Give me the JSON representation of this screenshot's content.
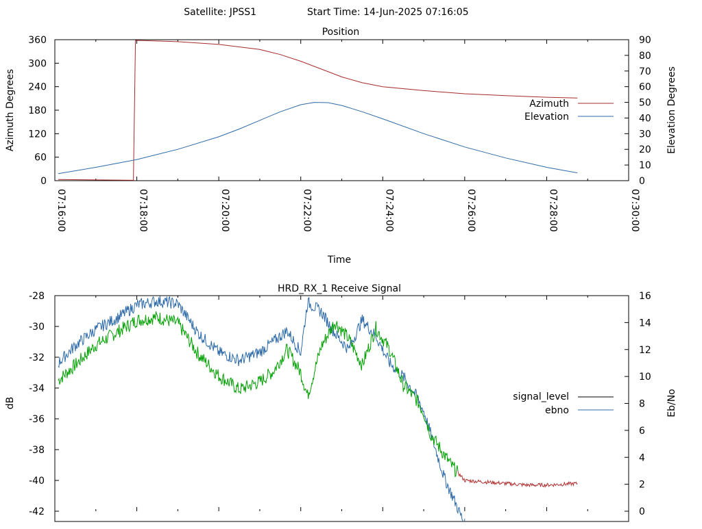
{
  "header": {
    "satellite": "Satellite: JPSS1",
    "start_time": "Start Time: 14-Jun-2025 07:16:05"
  },
  "colors": {
    "azimuth": "#a52a2a",
    "elevation": "#2d6aa8",
    "signal_level_legend": "#000000",
    "ebno_legend": "#2d6aa8",
    "signal_trace_green": "#00a000",
    "signal_trace_red": "#b03030"
  },
  "chart_data": [
    {
      "type": "line",
      "title": "Position",
      "xlabel": "Time",
      "ylabel": "Azimuth Degrees",
      "y2label": "Elevation Degrees",
      "xlim": [
        "07:16:00",
        "07:30:00"
      ],
      "x_ticks": [
        "07:16:00",
        "07:18:00",
        "07:20:00",
        "07:22:00",
        "07:24:00",
        "07:26:00",
        "07:28:00",
        "07:30:00"
      ],
      "ylim": [
        0,
        360
      ],
      "y_ticks": [
        "0",
        "60",
        "120",
        "180",
        "240",
        "300",
        "360"
      ],
      "y2lim": [
        0,
        90
      ],
      "y2_ticks": [
        "0",
        "10",
        "20",
        "30",
        "40",
        "50",
        "60",
        "70",
        "80",
        "90"
      ],
      "legend_position": "right",
      "series": [
        {
          "name": "Azimuth",
          "axis": "y",
          "x": [
            "07:16:05",
            "07:17:00",
            "07:17:55",
            "07:17:58",
            "07:18:05",
            "07:19:00",
            "07:20:00",
            "07:21:00",
            "07:21:30",
            "07:22:00",
            "07:22:30",
            "07:23:00",
            "07:23:30",
            "07:24:00",
            "07:25:00",
            "07:26:00",
            "07:27:00",
            "07:28:00",
            "07:28:45"
          ],
          "values": [
            3,
            2,
            1,
            358,
            358,
            355,
            348,
            335,
            322,
            305,
            285,
            265,
            250,
            240,
            230,
            222,
            217,
            213,
            211
          ]
        },
        {
          "name": "Elevation",
          "axis": "y2",
          "x": [
            "07:16:05",
            "07:17:00",
            "07:18:00",
            "07:19:00",
            "07:20:00",
            "07:20:30",
            "07:21:00",
            "07:21:30",
            "07:22:00",
            "07:22:20",
            "07:22:40",
            "07:23:00",
            "07:23:30",
            "07:24:00",
            "07:25:00",
            "07:26:00",
            "07:27:00",
            "07:28:00",
            "07:28:45"
          ],
          "values": [
            4.5,
            8.5,
            13.5,
            20,
            28,
            33,
            38.5,
            44,
            48.5,
            50,
            49.8,
            48,
            44,
            39.5,
            30,
            21.5,
            14.5,
            8.5,
            5
          ]
        }
      ]
    },
    {
      "type": "line",
      "title": "HRD_RX_1 Receive Signal",
      "ylabel": "dB",
      "y2label": "Eb/No",
      "xlim": [
        "07:16:00",
        "07:30:00"
      ],
      "ylim": [
        -42,
        -28
      ],
      "y_ticks": [
        "-28",
        "-30",
        "-32",
        "-34",
        "-36",
        "-38",
        "-40",
        "-42"
      ],
      "y2lim": [
        0,
        16
      ],
      "y2_ticks": [
        "0",
        "2",
        "4",
        "6",
        "8",
        "10",
        "12",
        "14",
        "16"
      ],
      "legend_position": "right",
      "series": [
        {
          "name": "signal_level",
          "axis": "y",
          "x": [
            "07:16:05",
            "07:16:30",
            "07:17:00",
            "07:17:30",
            "07:18:00",
            "07:18:30",
            "07:19:00",
            "07:19:30",
            "07:20:00",
            "07:20:30",
            "07:21:00",
            "07:21:20",
            "07:21:40",
            "07:22:00",
            "07:22:10",
            "07:22:30",
            "07:22:50",
            "07:23:10",
            "07:23:30",
            "07:23:50",
            "07:24:10",
            "07:24:30",
            "07:24:50",
            "07:25:00",
            "07:25:10",
            "07:25:40",
            "07:26:00",
            "07:26:30",
            "07:27:00",
            "07:27:30",
            "07:28:00",
            "07:28:45"
          ],
          "values": [
            -33.5,
            -32.5,
            -31.2,
            -30.4,
            -29.6,
            -29.4,
            -29.8,
            -31.8,
            -33.2,
            -34.1,
            -33.6,
            -32.9,
            -31.5,
            -33.0,
            -34.5,
            -31.3,
            -29.7,
            -30.8,
            -32.5,
            -30.1,
            -31.5,
            -33.8,
            -34.8,
            -35.6,
            -37.0,
            -39.0,
            -40.0,
            -40.1,
            -40.2,
            -40.3,
            -40.3,
            -40.2
          ]
        },
        {
          "name": "ebno",
          "axis": "y2",
          "x": [
            "07:16:05",
            "07:16:30",
            "07:17:00",
            "07:17:30",
            "07:18:00",
            "07:18:30",
            "07:19:00",
            "07:19:30",
            "07:20:00",
            "07:20:30",
            "07:21:00",
            "07:21:20",
            "07:21:40",
            "07:22:00",
            "07:22:10",
            "07:22:30",
            "07:22:50",
            "07:23:10",
            "07:23:30",
            "07:23:50",
            "07:24:10",
            "07:24:30",
            "07:24:50",
            "07:25:00",
            "07:25:10",
            "07:25:30",
            "07:25:50",
            "07:26:00"
          ],
          "values": [
            11.0,
            12.3,
            13.5,
            14.3,
            15.3,
            15.6,
            15.4,
            13.2,
            11.8,
            11.2,
            11.8,
            12.6,
            13.4,
            11.8,
            15.5,
            14.8,
            13.2,
            12.0,
            14.2,
            13.0,
            11.0,
            10.0,
            8.5,
            7.4,
            5.8,
            2.5,
            0.2,
            -1
          ]
        }
      ]
    }
  ]
}
